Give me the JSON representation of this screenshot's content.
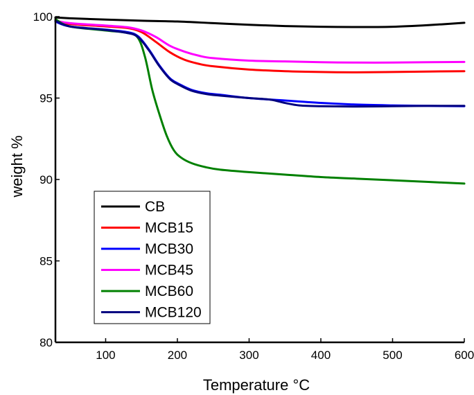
{
  "chart_data": {
    "type": "line",
    "xlabel": "Temperature °C",
    "ylabel": "weight %",
    "xlim": [
      30,
      600
    ],
    "ylim": [
      80,
      100
    ],
    "xticks": [
      100,
      200,
      300,
      400,
      500,
      600
    ],
    "yticks": [
      80,
      85,
      90,
      95,
      100
    ],
    "grid": false,
    "legend_position": "bottom-left",
    "series": [
      {
        "name": "CB",
        "color": "#000000",
        "x": [
          30,
          50,
          100,
          150,
          200,
          250,
          300,
          350,
          400,
          450,
          500,
          550,
          600
        ],
        "y": [
          99.95,
          99.9,
          99.82,
          99.75,
          99.7,
          99.6,
          99.5,
          99.42,
          99.38,
          99.36,
          99.38,
          99.48,
          99.62
        ]
      },
      {
        "name": "MCB15",
        "color": "#ff0000",
        "x": [
          30,
          50,
          100,
          130,
          150,
          170,
          190,
          210,
          230,
          250,
          300,
          350,
          400,
          450,
          500,
          550,
          600
        ],
        "y": [
          99.75,
          99.55,
          99.4,
          99.3,
          99.05,
          98.45,
          97.8,
          97.35,
          97.1,
          96.95,
          96.75,
          96.65,
          96.6,
          96.58,
          96.6,
          96.63,
          96.65
        ]
      },
      {
        "name": "MCB30",
        "color": "#0000ff",
        "x": [
          30,
          50,
          100,
          130,
          145,
          160,
          175,
          190,
          205,
          220,
          240,
          260,
          300,
          350,
          400,
          450,
          500,
          550,
          600
        ],
        "y": [
          99.7,
          99.4,
          99.2,
          99.05,
          98.8,
          98.0,
          97.0,
          96.2,
          95.8,
          95.5,
          95.3,
          95.2,
          95.0,
          94.85,
          94.7,
          94.6,
          94.55,
          94.52,
          94.5
        ]
      },
      {
        "name": "MCB45",
        "color": "#ff00ff",
        "x": [
          30,
          50,
          100,
          130,
          150,
          170,
          190,
          210,
          230,
          250,
          300,
          350,
          400,
          450,
          500,
          550,
          600
        ],
        "y": [
          99.75,
          99.6,
          99.45,
          99.35,
          99.15,
          98.75,
          98.2,
          97.85,
          97.6,
          97.45,
          97.3,
          97.25,
          97.2,
          97.18,
          97.18,
          97.2,
          97.22
        ]
      },
      {
        "name": "MCB60",
        "color": "#008000",
        "x": [
          30,
          50,
          100,
          130,
          145,
          155,
          165,
          175,
          185,
          195,
          205,
          220,
          240,
          260,
          300,
          350,
          400,
          450,
          500,
          550,
          600
        ],
        "y": [
          99.85,
          99.4,
          99.15,
          99.0,
          98.7,
          97.5,
          95.5,
          94.0,
          92.7,
          91.8,
          91.35,
          91.0,
          90.75,
          90.6,
          90.45,
          90.3,
          90.15,
          90.05,
          89.95,
          89.85,
          89.75
        ]
      },
      {
        "name": "MCB120",
        "color": "#000080",
        "x": [
          30,
          50,
          100,
          130,
          145,
          160,
          175,
          190,
          205,
          220,
          240,
          260,
          300,
          330,
          350,
          370,
          400,
          450,
          500,
          550,
          600
        ],
        "y": [
          99.75,
          99.4,
          99.18,
          99.0,
          98.75,
          97.95,
          96.95,
          96.15,
          95.75,
          95.45,
          95.25,
          95.15,
          95.0,
          94.9,
          94.7,
          94.55,
          94.5,
          94.48,
          94.5,
          94.52,
          94.52
        ]
      }
    ]
  }
}
